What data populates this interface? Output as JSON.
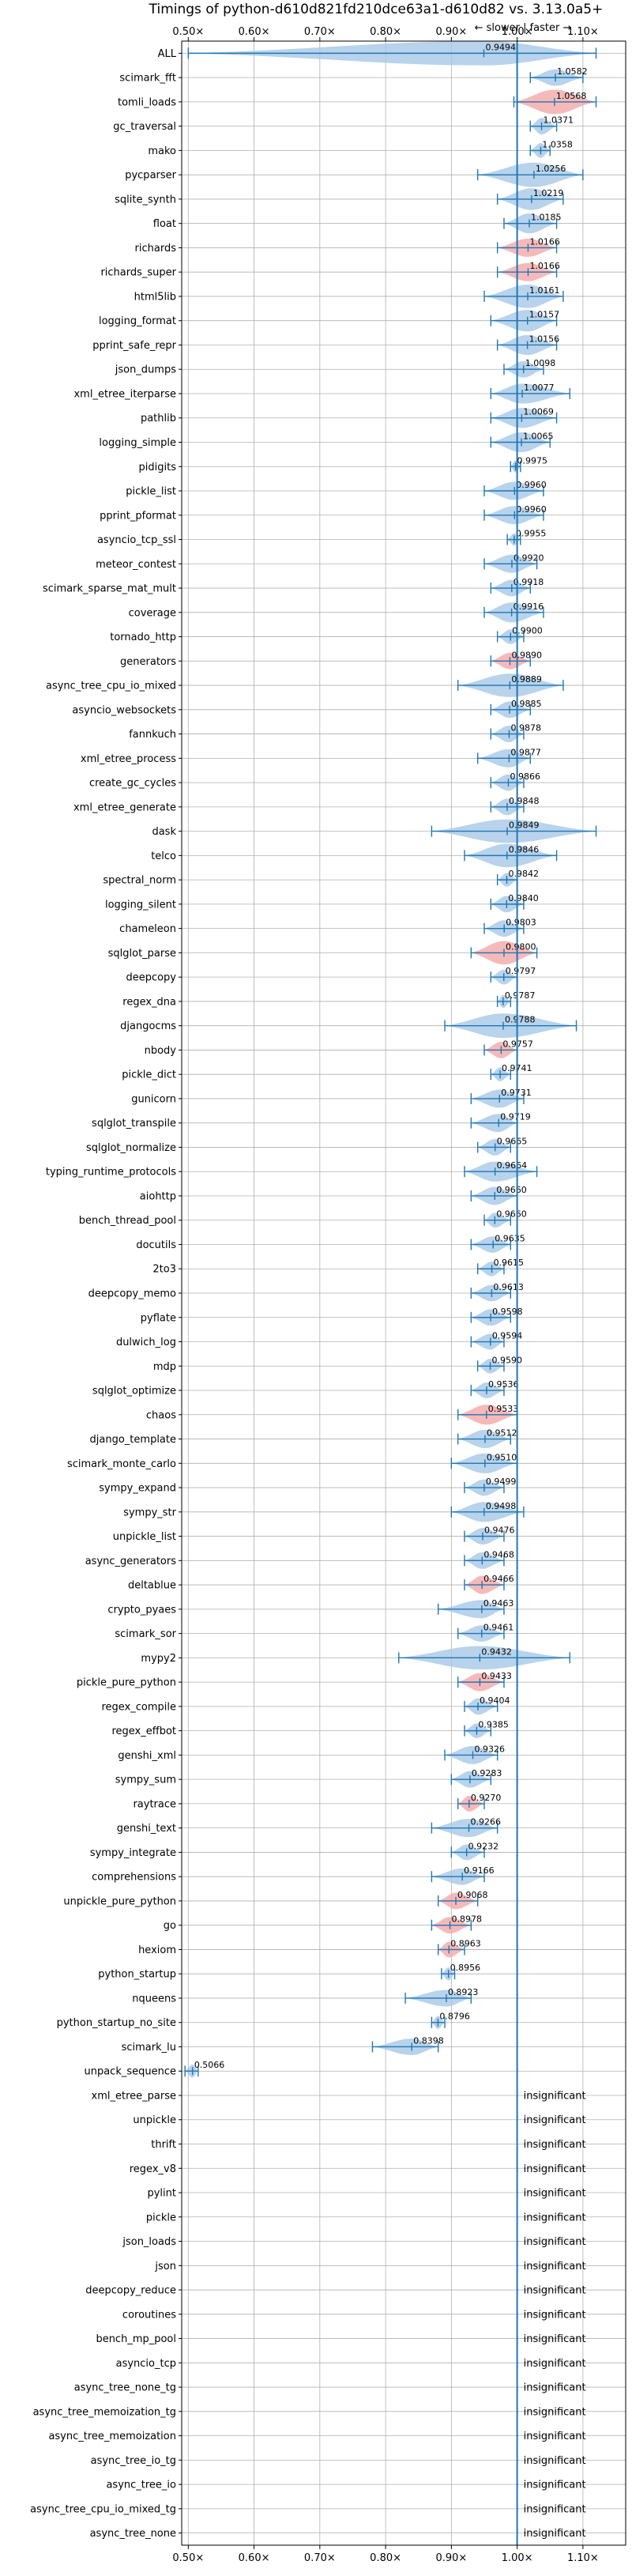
{
  "chart_data": {
    "type": "violin",
    "title": "Timings of python-d610d821fd210dce63a1-d610d82 vs. 3.13.0a5+",
    "annotation": "← slower | faster →",
    "xlim": [
      0.49,
      1.165
    ],
    "x_ticks": [
      0.5,
      0.6,
      0.7,
      0.8,
      0.9,
      1.0,
      1.1
    ],
    "x_tick_labels": [
      "0.50×",
      "0.60×",
      "0.70×",
      "0.80×",
      "0.90×",
      "1.00×",
      "1.10×"
    ],
    "reference_line": 1.0,
    "grid": true,
    "colors": {
      "faster": "#a6c8e6",
      "slower": "#f4a8a8",
      "line": "#1f77b4",
      "grid": "#b0b0b0"
    },
    "insignificant_label": "insignificant",
    "benchmarks": [
      {
        "name": "ALL",
        "value": 0.9494,
        "label": "0.9494",
        "min": 0.5,
        "max": 1.12,
        "width": 0.055,
        "slower": false
      },
      {
        "name": "scimark_fft",
        "value": 1.0582,
        "label": "1.0582",
        "min": 1.02,
        "max": 1.1,
        "width": 0.02,
        "slower": false
      },
      {
        "name": "tomli_loads",
        "value": 1.0568,
        "label": "1.0568",
        "min": 0.995,
        "max": 1.12,
        "width": 0.06,
        "slower": true
      },
      {
        "name": "gc_traversal",
        "value": 1.0371,
        "label": "1.0371",
        "min": 1.02,
        "max": 1.06,
        "width": 0.02,
        "slower": false
      },
      {
        "name": "mako",
        "value": 1.0358,
        "label": "1.0358",
        "min": 1.02,
        "max": 1.05,
        "width": 0.015,
        "slower": false
      },
      {
        "name": "pycparser",
        "value": 1.0256,
        "label": "1.0256",
        "min": 0.94,
        "max": 1.1,
        "width": 0.05,
        "slower": false
      },
      {
        "name": "sqlite_synth",
        "value": 1.0219,
        "label": "1.0219",
        "min": 0.97,
        "max": 1.07,
        "width": 0.035,
        "slower": false
      },
      {
        "name": "float",
        "value": 1.0185,
        "label": "1.0185",
        "min": 0.98,
        "max": 1.06,
        "width": 0.03,
        "slower": false
      },
      {
        "name": "richards",
        "value": 1.0166,
        "label": "1.0166",
        "min": 0.97,
        "max": 1.06,
        "width": 0.025,
        "slower": true
      },
      {
        "name": "richards_super",
        "value": 1.0166,
        "label": "1.0166",
        "min": 0.97,
        "max": 1.06,
        "width": 0.025,
        "slower": true
      },
      {
        "name": "html5lib",
        "value": 1.0161,
        "label": "1.0161",
        "min": 0.95,
        "max": 1.07,
        "width": 0.04,
        "slower": false
      },
      {
        "name": "logging_format",
        "value": 1.0157,
        "label": "1.0157",
        "min": 0.96,
        "max": 1.06,
        "width": 0.035,
        "slower": false
      },
      {
        "name": "pprint_safe_repr",
        "value": 1.0156,
        "label": "1.0156",
        "min": 0.97,
        "max": 1.06,
        "width": 0.03,
        "slower": false
      },
      {
        "name": "json_dumps",
        "value": 1.0098,
        "label": "1.0098",
        "min": 0.98,
        "max": 1.04,
        "width": 0.02,
        "slower": false
      },
      {
        "name": "xml_etree_iterparse",
        "value": 1.0077,
        "label": "1.0077",
        "min": 0.96,
        "max": 1.08,
        "width": 0.03,
        "slower": false
      },
      {
        "name": "pathlib",
        "value": 1.0069,
        "label": "1.0069",
        "min": 0.96,
        "max": 1.06,
        "width": 0.03,
        "slower": false
      },
      {
        "name": "logging_simple",
        "value": 1.0065,
        "label": "1.0065",
        "min": 0.96,
        "max": 1.05,
        "width": 0.03,
        "slower": false
      },
      {
        "name": "pidigits",
        "value": 0.9975,
        "label": "0.9975",
        "min": 0.99,
        "max": 1.005,
        "width": 0.008,
        "slower": false
      },
      {
        "name": "pickle_list",
        "value": 0.996,
        "label": "0.9960",
        "min": 0.95,
        "max": 1.04,
        "width": 0.025,
        "slower": false
      },
      {
        "name": "pprint_pformat",
        "value": 0.996,
        "label": "0.9960",
        "min": 0.95,
        "max": 1.04,
        "width": 0.025,
        "slower": false
      },
      {
        "name": "asyncio_tcp_ssl",
        "value": 0.9955,
        "label": "0.9955",
        "min": 0.985,
        "max": 1.005,
        "width": 0.008,
        "slower": false
      },
      {
        "name": "meteor_contest",
        "value": 0.992,
        "label": "0.9920",
        "min": 0.95,
        "max": 1.03,
        "width": 0.025,
        "slower": false
      },
      {
        "name": "scimark_sparse_mat_mult",
        "value": 0.9918,
        "label": "0.9918",
        "min": 0.96,
        "max": 1.02,
        "width": 0.02,
        "slower": false
      },
      {
        "name": "coverage",
        "value": 0.9916,
        "label": "0.9916",
        "min": 0.95,
        "max": 1.04,
        "width": 0.03,
        "slower": false
      },
      {
        "name": "tornado_http",
        "value": 0.99,
        "label": "0.9900",
        "min": 0.97,
        "max": 1.01,
        "width": 0.015,
        "slower": false
      },
      {
        "name": "generators",
        "value": 0.989,
        "label": "0.9890",
        "min": 0.96,
        "max": 1.02,
        "width": 0.02,
        "slower": true
      },
      {
        "name": "async_tree_cpu_io_mixed",
        "value": 0.9889,
        "label": "0.9889",
        "min": 0.91,
        "max": 1.07,
        "width": 0.04,
        "slower": false
      },
      {
        "name": "asyncio_websockets",
        "value": 0.9885,
        "label": "0.9885",
        "min": 0.96,
        "max": 1.02,
        "width": 0.02,
        "slower": false
      },
      {
        "name": "fannkuch",
        "value": 0.9878,
        "label": "0.9878",
        "min": 0.96,
        "max": 1.01,
        "width": 0.02,
        "slower": false
      },
      {
        "name": "xml_etree_process",
        "value": 0.9877,
        "label": "0.9877",
        "min": 0.94,
        "max": 1.02,
        "width": 0.025,
        "slower": false
      },
      {
        "name": "create_gc_cycles",
        "value": 0.9866,
        "label": "0.9866",
        "min": 0.96,
        "max": 1.01,
        "width": 0.02,
        "slower": false
      },
      {
        "name": "xml_etree_generate",
        "value": 0.9848,
        "label": "0.9848",
        "min": 0.96,
        "max": 1.01,
        "width": 0.02,
        "slower": false
      },
      {
        "name": "dask",
        "value": 0.9849,
        "label": "0.9849",
        "min": 0.87,
        "max": 1.12,
        "width": 0.04,
        "slower": false
      },
      {
        "name": "telco",
        "value": 0.9846,
        "label": "0.9846",
        "min": 0.92,
        "max": 1.06,
        "width": 0.04,
        "slower": false
      },
      {
        "name": "spectral_norm",
        "value": 0.9842,
        "label": "0.9842",
        "min": 0.97,
        "max": 1.0,
        "width": 0.012,
        "slower": false
      },
      {
        "name": "logging_silent",
        "value": 0.984,
        "label": "0.9840",
        "min": 0.96,
        "max": 1.01,
        "width": 0.02,
        "slower": false
      },
      {
        "name": "chameleon",
        "value": 0.9803,
        "label": "0.9803",
        "min": 0.95,
        "max": 1.01,
        "width": 0.02,
        "slower": false
      },
      {
        "name": "sqlglot_parse",
        "value": 0.98,
        "label": "0.9800",
        "min": 0.93,
        "max": 1.03,
        "width": 0.04,
        "slower": true
      },
      {
        "name": "deepcopy",
        "value": 0.9797,
        "label": "0.9797",
        "min": 0.96,
        "max": 1.0,
        "width": 0.015,
        "slower": false
      },
      {
        "name": "regex_dna",
        "value": 0.9787,
        "label": "0.9787",
        "min": 0.97,
        "max": 0.99,
        "width": 0.01,
        "slower": false
      },
      {
        "name": "djangocms",
        "value": 0.9788,
        "label": "0.9788",
        "min": 0.89,
        "max": 1.09,
        "width": 0.05,
        "slower": false
      },
      {
        "name": "nbody",
        "value": 0.9757,
        "label": "0.9757",
        "min": 0.95,
        "max": 1.0,
        "width": 0.02,
        "slower": true
      },
      {
        "name": "pickle_dict",
        "value": 0.9741,
        "label": "0.9741",
        "min": 0.96,
        "max": 0.99,
        "width": 0.012,
        "slower": false
      },
      {
        "name": "gunicorn",
        "value": 0.9731,
        "label": "0.9731",
        "min": 0.93,
        "max": 1.01,
        "width": 0.025,
        "slower": false
      },
      {
        "name": "sqlglot_transpile",
        "value": 0.9719,
        "label": "0.9719",
        "min": 0.93,
        "max": 1.0,
        "width": 0.025,
        "slower": false
      },
      {
        "name": "sqlglot_normalize",
        "value": 0.9665,
        "label": "0.9665",
        "min": 0.94,
        "max": 0.99,
        "width": 0.02,
        "slower": false
      },
      {
        "name": "typing_runtime_protocols",
        "value": 0.9664,
        "label": "0.9664",
        "min": 0.92,
        "max": 1.03,
        "width": 0.03,
        "slower": false
      },
      {
        "name": "aiohttp",
        "value": 0.966,
        "label": "0.9660",
        "min": 0.93,
        "max": 1.0,
        "width": 0.025,
        "slower": false
      },
      {
        "name": "bench_thread_pool",
        "value": 0.966,
        "label": "0.9660",
        "min": 0.95,
        "max": 0.99,
        "width": 0.015,
        "slower": false
      },
      {
        "name": "docutils",
        "value": 0.9635,
        "label": "0.9635",
        "min": 0.93,
        "max": 0.99,
        "width": 0.02,
        "slower": false
      },
      {
        "name": "2to3",
        "value": 0.9615,
        "label": "0.9615",
        "min": 0.94,
        "max": 0.98,
        "width": 0.015,
        "slower": false
      },
      {
        "name": "deepcopy_memo",
        "value": 0.9613,
        "label": "0.9613",
        "min": 0.93,
        "max": 0.99,
        "width": 0.02,
        "slower": false
      },
      {
        "name": "pyflate",
        "value": 0.9598,
        "label": "0.9598",
        "min": 0.93,
        "max": 0.99,
        "width": 0.02,
        "slower": false
      },
      {
        "name": "dulwich_log",
        "value": 0.9594,
        "label": "0.9594",
        "min": 0.93,
        "max": 0.98,
        "width": 0.018,
        "slower": false
      },
      {
        "name": "mdp",
        "value": 0.959,
        "label": "0.9590",
        "min": 0.94,
        "max": 0.98,
        "width": 0.015,
        "slower": false
      },
      {
        "name": "sqlglot_optimize",
        "value": 0.9536,
        "label": "0.9536",
        "min": 0.93,
        "max": 0.98,
        "width": 0.018,
        "slower": false
      },
      {
        "name": "chaos",
        "value": 0.9533,
        "label": "0.9533",
        "min": 0.91,
        "max": 1.0,
        "width": 0.03,
        "slower": true
      },
      {
        "name": "django_template",
        "value": 0.9512,
        "label": "0.9512",
        "min": 0.91,
        "max": 0.99,
        "width": 0.025,
        "slower": false
      },
      {
        "name": "scimark_monte_carlo",
        "value": 0.951,
        "label": "0.9510",
        "min": 0.9,
        "max": 1.0,
        "width": 0.03,
        "slower": false
      },
      {
        "name": "sympy_expand",
        "value": 0.9499,
        "label": "0.9499",
        "min": 0.92,
        "max": 0.98,
        "width": 0.02,
        "slower": false
      },
      {
        "name": "sympy_str",
        "value": 0.9498,
        "label": "0.9498",
        "min": 0.9,
        "max": 1.01,
        "width": 0.03,
        "slower": false
      },
      {
        "name": "unpickle_list",
        "value": 0.9476,
        "label": "0.9476",
        "min": 0.92,
        "max": 0.98,
        "width": 0.02,
        "slower": false
      },
      {
        "name": "async_generators",
        "value": 0.9468,
        "label": "0.9468",
        "min": 0.92,
        "max": 0.98,
        "width": 0.02,
        "slower": false
      },
      {
        "name": "deltablue",
        "value": 0.9466,
        "label": "0.9466",
        "min": 0.92,
        "max": 0.98,
        "width": 0.025,
        "slower": true
      },
      {
        "name": "crypto_pyaes",
        "value": 0.9463,
        "label": "0.9463",
        "min": 0.88,
        "max": 0.98,
        "width": 0.025,
        "slower": false
      },
      {
        "name": "scimark_sor",
        "value": 0.9461,
        "label": "0.9461",
        "min": 0.91,
        "max": 0.98,
        "width": 0.02,
        "slower": false
      },
      {
        "name": "mypy2",
        "value": 0.9432,
        "label": "0.9432",
        "min": 0.82,
        "max": 1.08,
        "width": 0.04,
        "slower": false
      },
      {
        "name": "pickle_pure_python",
        "value": 0.9433,
        "label": "0.9433",
        "min": 0.91,
        "max": 0.98,
        "width": 0.025,
        "slower": true
      },
      {
        "name": "regex_compile",
        "value": 0.9404,
        "label": "0.9404",
        "min": 0.92,
        "max": 0.97,
        "width": 0.02,
        "slower": false
      },
      {
        "name": "regex_effbot",
        "value": 0.9385,
        "label": "0.9385",
        "min": 0.92,
        "max": 0.96,
        "width": 0.015,
        "slower": false
      },
      {
        "name": "genshi_xml",
        "value": 0.9326,
        "label": "0.9326",
        "min": 0.89,
        "max": 0.97,
        "width": 0.025,
        "slower": false
      },
      {
        "name": "sympy_sum",
        "value": 0.9283,
        "label": "0.9283",
        "min": 0.9,
        "max": 0.96,
        "width": 0.02,
        "slower": false
      },
      {
        "name": "raytrace",
        "value": 0.927,
        "label": "0.9270",
        "min": 0.91,
        "max": 0.95,
        "width": 0.018,
        "slower": true
      },
      {
        "name": "genshi_text",
        "value": 0.9266,
        "label": "0.9266",
        "min": 0.87,
        "max": 0.97,
        "width": 0.025,
        "slower": false
      },
      {
        "name": "sympy_integrate",
        "value": 0.9232,
        "label": "0.9232",
        "min": 0.9,
        "max": 0.95,
        "width": 0.018,
        "slower": false
      },
      {
        "name": "comprehensions",
        "value": 0.9166,
        "label": "0.9166",
        "min": 0.87,
        "max": 0.95,
        "width": 0.02,
        "slower": false
      },
      {
        "name": "unpickle_pure_python",
        "value": 0.9068,
        "label": "0.9068",
        "min": 0.88,
        "max": 0.94,
        "width": 0.02,
        "slower": true
      },
      {
        "name": "go",
        "value": 0.8978,
        "label": "0.8978",
        "min": 0.87,
        "max": 0.93,
        "width": 0.02,
        "slower": true
      },
      {
        "name": "hexiom",
        "value": 0.8963,
        "label": "0.8963",
        "min": 0.88,
        "max": 0.92,
        "width": 0.018,
        "slower": true
      },
      {
        "name": "python_startup",
        "value": 0.8956,
        "label": "0.8956",
        "min": 0.885,
        "max": 0.905,
        "width": 0.01,
        "slower": false
      },
      {
        "name": "nqueens",
        "value": 0.8923,
        "label": "0.8923",
        "min": 0.83,
        "max": 0.93,
        "width": 0.02,
        "slower": false
      },
      {
        "name": "python_startup_no_site",
        "value": 0.8796,
        "label": "0.8796",
        "min": 0.87,
        "max": 0.89,
        "width": 0.01,
        "slower": false
      },
      {
        "name": "scimark_lu",
        "value": 0.8398,
        "label": "0.8398",
        "min": 0.78,
        "max": 0.88,
        "width": 0.02,
        "slower": false
      },
      {
        "name": "unpack_sequence",
        "value": 0.5066,
        "label": "0.5066",
        "min": 0.495,
        "max": 0.515,
        "width": 0.01,
        "slower": false
      },
      {
        "name": "xml_etree_parse",
        "insignificant": true
      },
      {
        "name": "unpickle",
        "insignificant": true
      },
      {
        "name": "thrift",
        "insignificant": true
      },
      {
        "name": "regex_v8",
        "insignificant": true
      },
      {
        "name": "pylint",
        "insignificant": true
      },
      {
        "name": "pickle",
        "insignificant": true
      },
      {
        "name": "json_loads",
        "insignificant": true
      },
      {
        "name": "json",
        "insignificant": true
      },
      {
        "name": "deepcopy_reduce",
        "insignificant": true
      },
      {
        "name": "coroutines",
        "insignificant": true
      },
      {
        "name": "bench_mp_pool",
        "insignificant": true
      },
      {
        "name": "asyncio_tcp",
        "insignificant": true
      },
      {
        "name": "async_tree_none_tg",
        "insignificant": true
      },
      {
        "name": "async_tree_memoization_tg",
        "insignificant": true
      },
      {
        "name": "async_tree_memoization",
        "insignificant": true
      },
      {
        "name": "async_tree_io_tg",
        "insignificant": true
      },
      {
        "name": "async_tree_io",
        "insignificant": true
      },
      {
        "name": "async_tree_cpu_io_mixed_tg",
        "insignificant": true
      },
      {
        "name": "async_tree_none",
        "insignificant": true
      }
    ]
  }
}
